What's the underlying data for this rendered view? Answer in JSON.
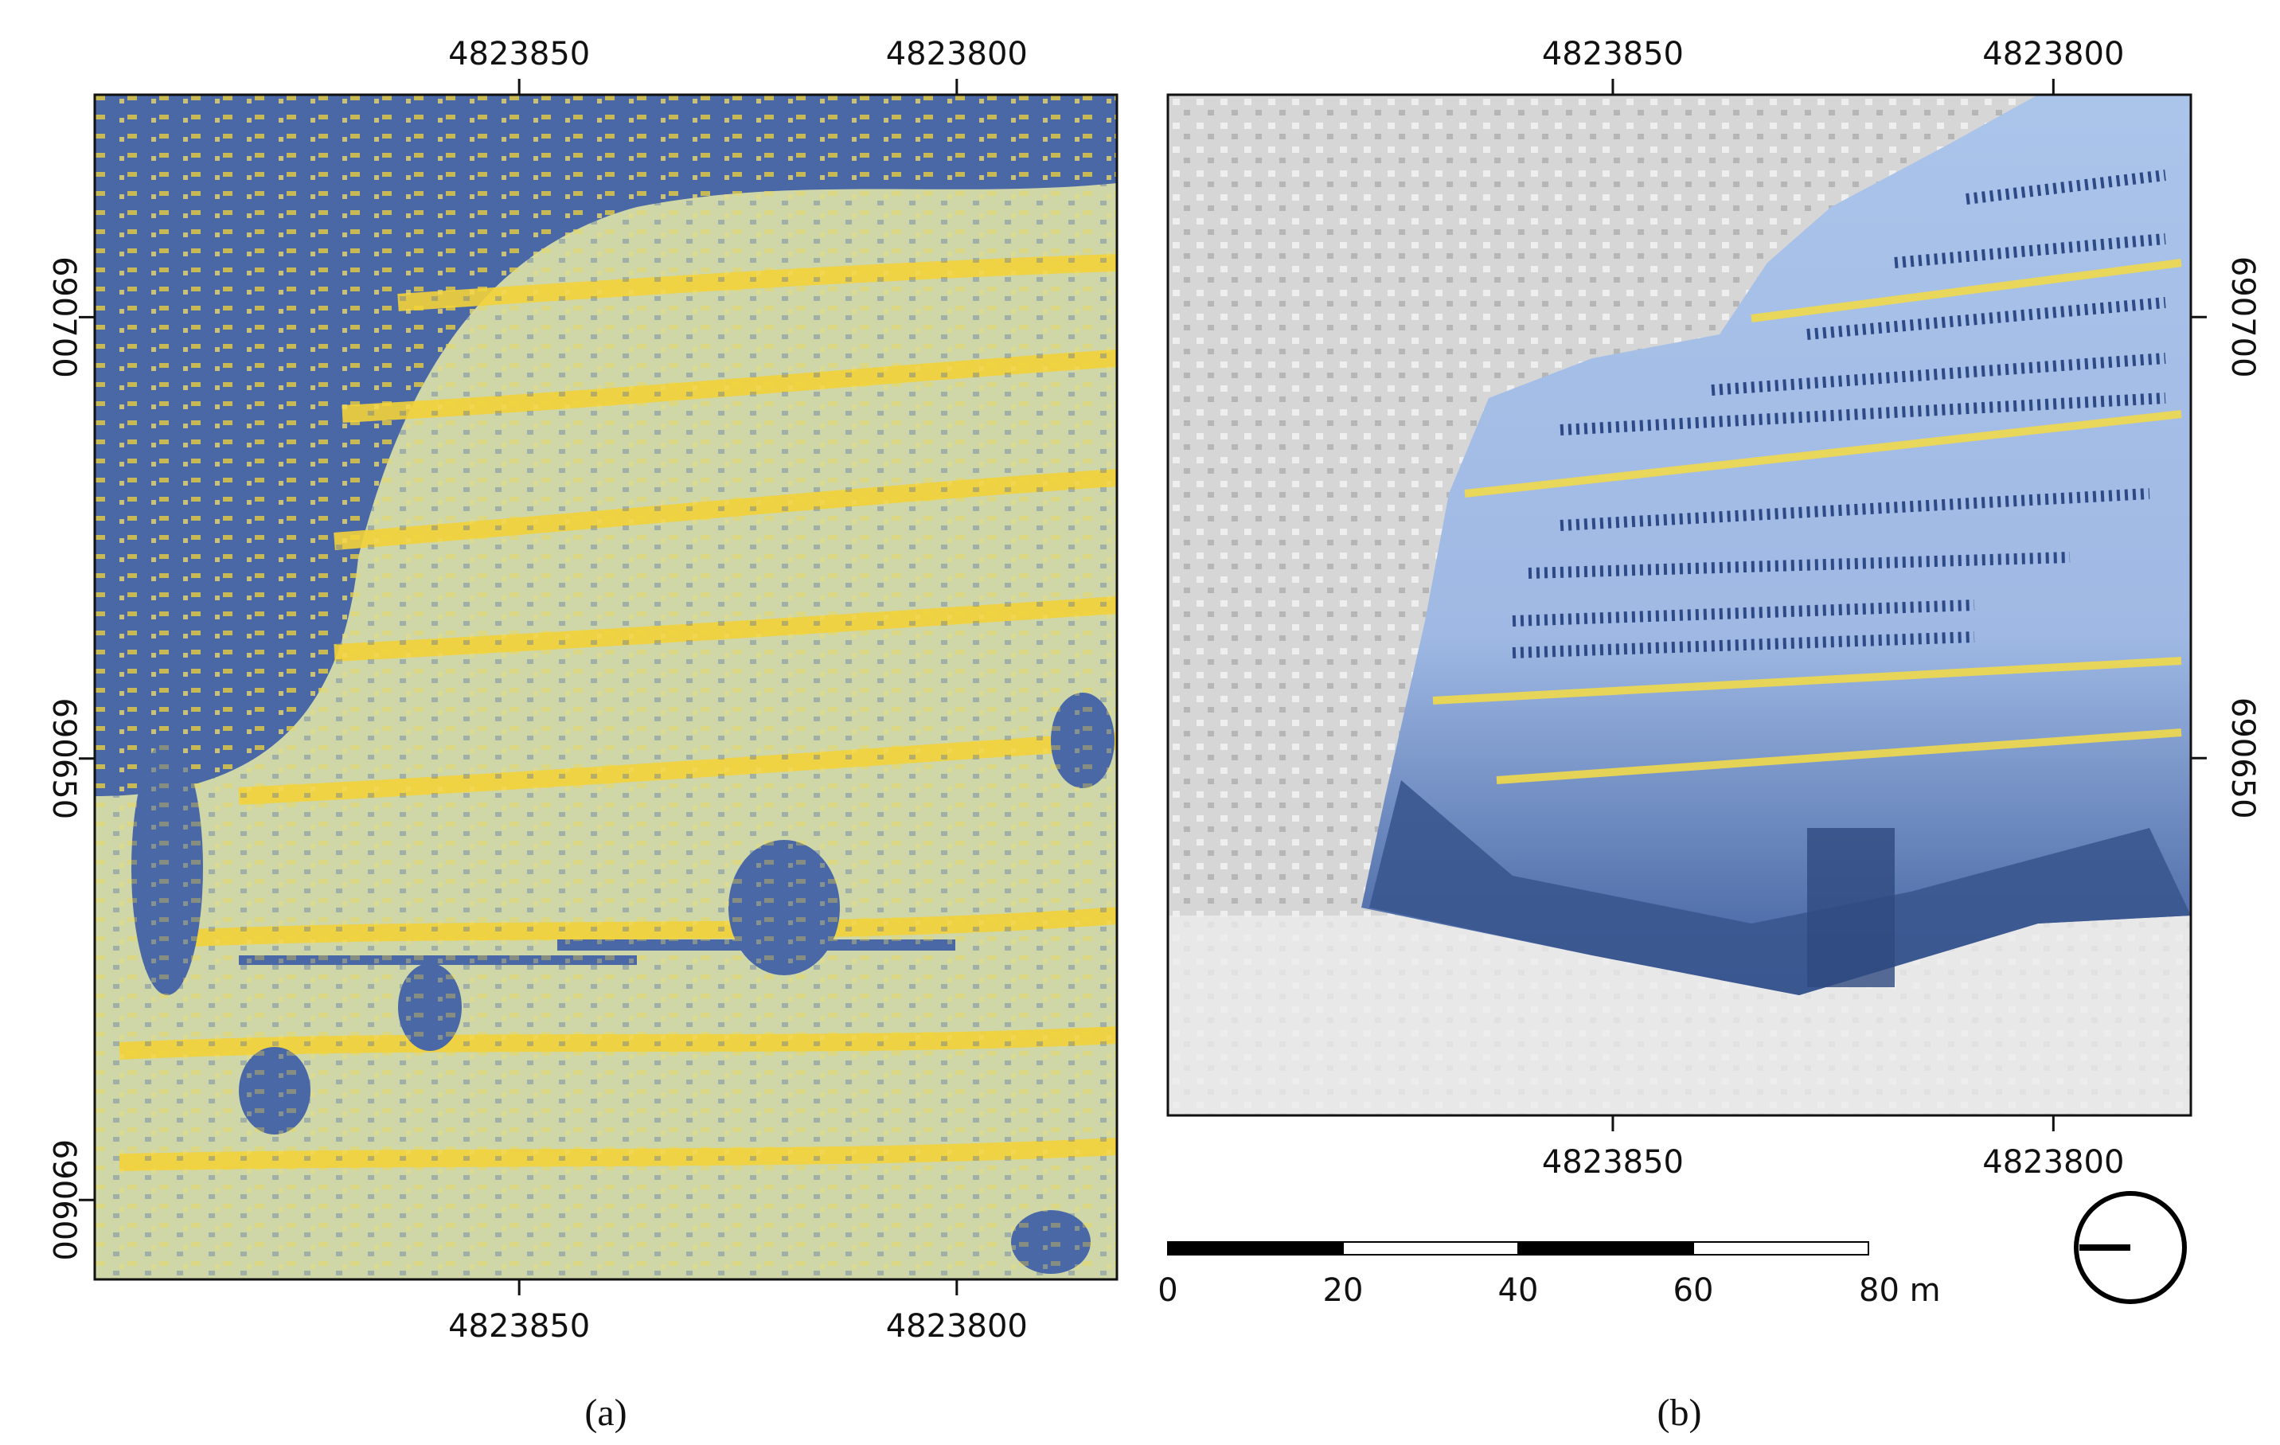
{
  "panels": [
    {
      "caption": "(a)",
      "xlim": [
        4823898.5,
        4823781.7
      ],
      "ylim": [
        690591,
        690725.2
      ],
      "xticks": [
        4823850,
        4823800
      ],
      "yticks": [
        690700,
        690650,
        690600
      ]
    },
    {
      "caption": "(b)",
      "xlim": [
        4823900.5,
        4823784.4
      ],
      "ylim": [
        690609.5,
        690725.2
      ],
      "xticks": [
        4823850,
        4823800
      ],
      "yticks": [
        690700,
        690650
      ]
    }
  ],
  "scale_bar": {
    "xlim": [
      0,
      80
    ],
    "ticks": [
      0,
      20,
      40,
      60,
      {
        "value": 80,
        "label": "80 m"
      }
    ]
  }
}
